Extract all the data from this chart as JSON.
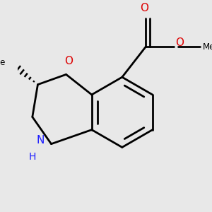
{
  "background_color": "#e8e8e8",
  "line_color": "#000000",
  "bond_width": 2.0,
  "figsize": [
    3.0,
    3.0
  ],
  "dpi": 100,
  "red": "#dd0000",
  "blue": "#1a1aff",
  "xlim": [
    -1.2,
    1.6
  ],
  "ylim": [
    -1.5,
    1.5
  ]
}
